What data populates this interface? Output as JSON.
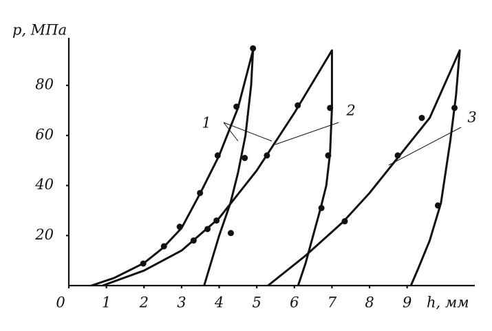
{
  "chart_data": {
    "type": "line",
    "xlabel": "h, мм",
    "ylabel": "p, МПа",
    "xlim": [
      0,
      10.8
    ],
    "ylim": [
      0,
      99
    ],
    "xticks": [
      0,
      1,
      2,
      3,
      4,
      5,
      6,
      7,
      8,
      9
    ],
    "yticks": [
      20,
      40,
      60,
      80
    ],
    "color": "#111111",
    "series": [
      {
        "name": "1",
        "x": [
          0.6,
          1.2,
          2,
          2.5,
          3,
          3.5,
          4,
          4.5,
          4.9,
          4.85,
          4.7,
          4.5,
          4.3,
          4,
          3.8,
          3.6
        ],
        "values": [
          0,
          3,
          9,
          15,
          23,
          37,
          52,
          71,
          94,
          80,
          60,
          45,
          33,
          20,
          10,
          0
        ],
        "markers_x": [
          1.98,
          2.53,
          2.95,
          3.49,
          3.96,
          4.46,
          4.9,
          4.68,
          4.31
        ],
        "markers": [
          8.8,
          15.7,
          23.5,
          37,
          52,
          71.5,
          94.8,
          51,
          21
        ]
      },
      {
        "name": "2",
        "x": [
          0.9,
          2,
          3,
          4,
          5,
          6,
          7,
          7,
          6.95,
          6.85,
          6.7,
          6.5,
          6.3,
          6.1
        ],
        "values": [
          0,
          6,
          14,
          27,
          46,
          69,
          94,
          71,
          53,
          40,
          31,
          20,
          9,
          0
        ],
        "markers_x": [
          3.32,
          3.69,
          3.93,
          5.27,
          6.09,
          6.95,
          6.9,
          6.72
        ],
        "markers": [
          18,
          22.6,
          26,
          52,
          72,
          71,
          52,
          31
        ]
      },
      {
        "name": "3",
        "x": [
          5.3,
          6.3,
          7.3,
          8,
          8.8,
          9.6,
          10.4,
          10.3,
          10.15,
          9.9,
          9.6,
          9.3,
          9.1
        ],
        "values": [
          0,
          12,
          25.5,
          37,
          52,
          67,
          94,
          76,
          58,
          33,
          18,
          7,
          0
        ],
        "markers_x": [
          7.34,
          8.75,
          9.39,
          10.26,
          9.82
        ],
        "markers": [
          25.7,
          52,
          67,
          71,
          32
        ]
      }
    ]
  }
}
